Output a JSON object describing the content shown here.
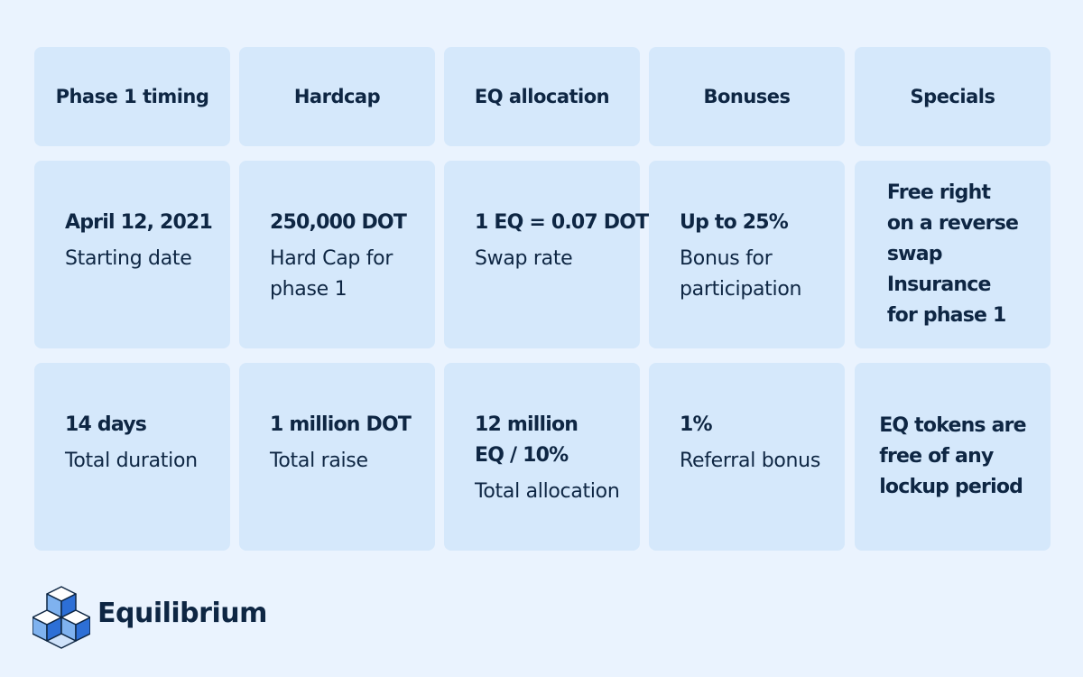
{
  "table": {
    "header": [
      "Phase 1 timing",
      "Hardcap",
      "EQ allocation",
      "Bonuses",
      "Specials"
    ],
    "rows": [
      [
        {
          "title": [
            "April 12, 2021"
          ],
          "text": [
            "Starting date"
          ]
        },
        {
          "title": [
            "250,000 DOT"
          ],
          "text": [
            "Hard Cap for",
            "phase 1"
          ]
        },
        {
          "title": [
            "1 EQ = 0.07 DOT"
          ],
          "text": [
            "Swap rate"
          ]
        },
        {
          "title": [
            "Up to 25%"
          ],
          "text": [
            "Bonus for",
            "participation"
          ]
        },
        {
          "title": [
            "Free right",
            "on a reverse",
            "swap",
            "Insurance",
            "for phase 1"
          ]
        }
      ],
      [
        {
          "title": [
            "14 days"
          ],
          "text": [
            "Total duration"
          ]
        },
        {
          "title": [
            "1 million DOT"
          ],
          "text": [
            "Total raise"
          ]
        },
        {
          "title": [
            "12 million",
            "EQ / 10%"
          ],
          "text": [
            "Total allocation"
          ]
        },
        {
          "title": [
            "1%"
          ],
          "text": [
            "Referral bonus"
          ]
        },
        {
          "title": [
            "EQ tokens are",
            "free of any",
            "lockup period"
          ]
        }
      ]
    ]
  },
  "brand": {
    "name": "Equilibrium"
  }
}
